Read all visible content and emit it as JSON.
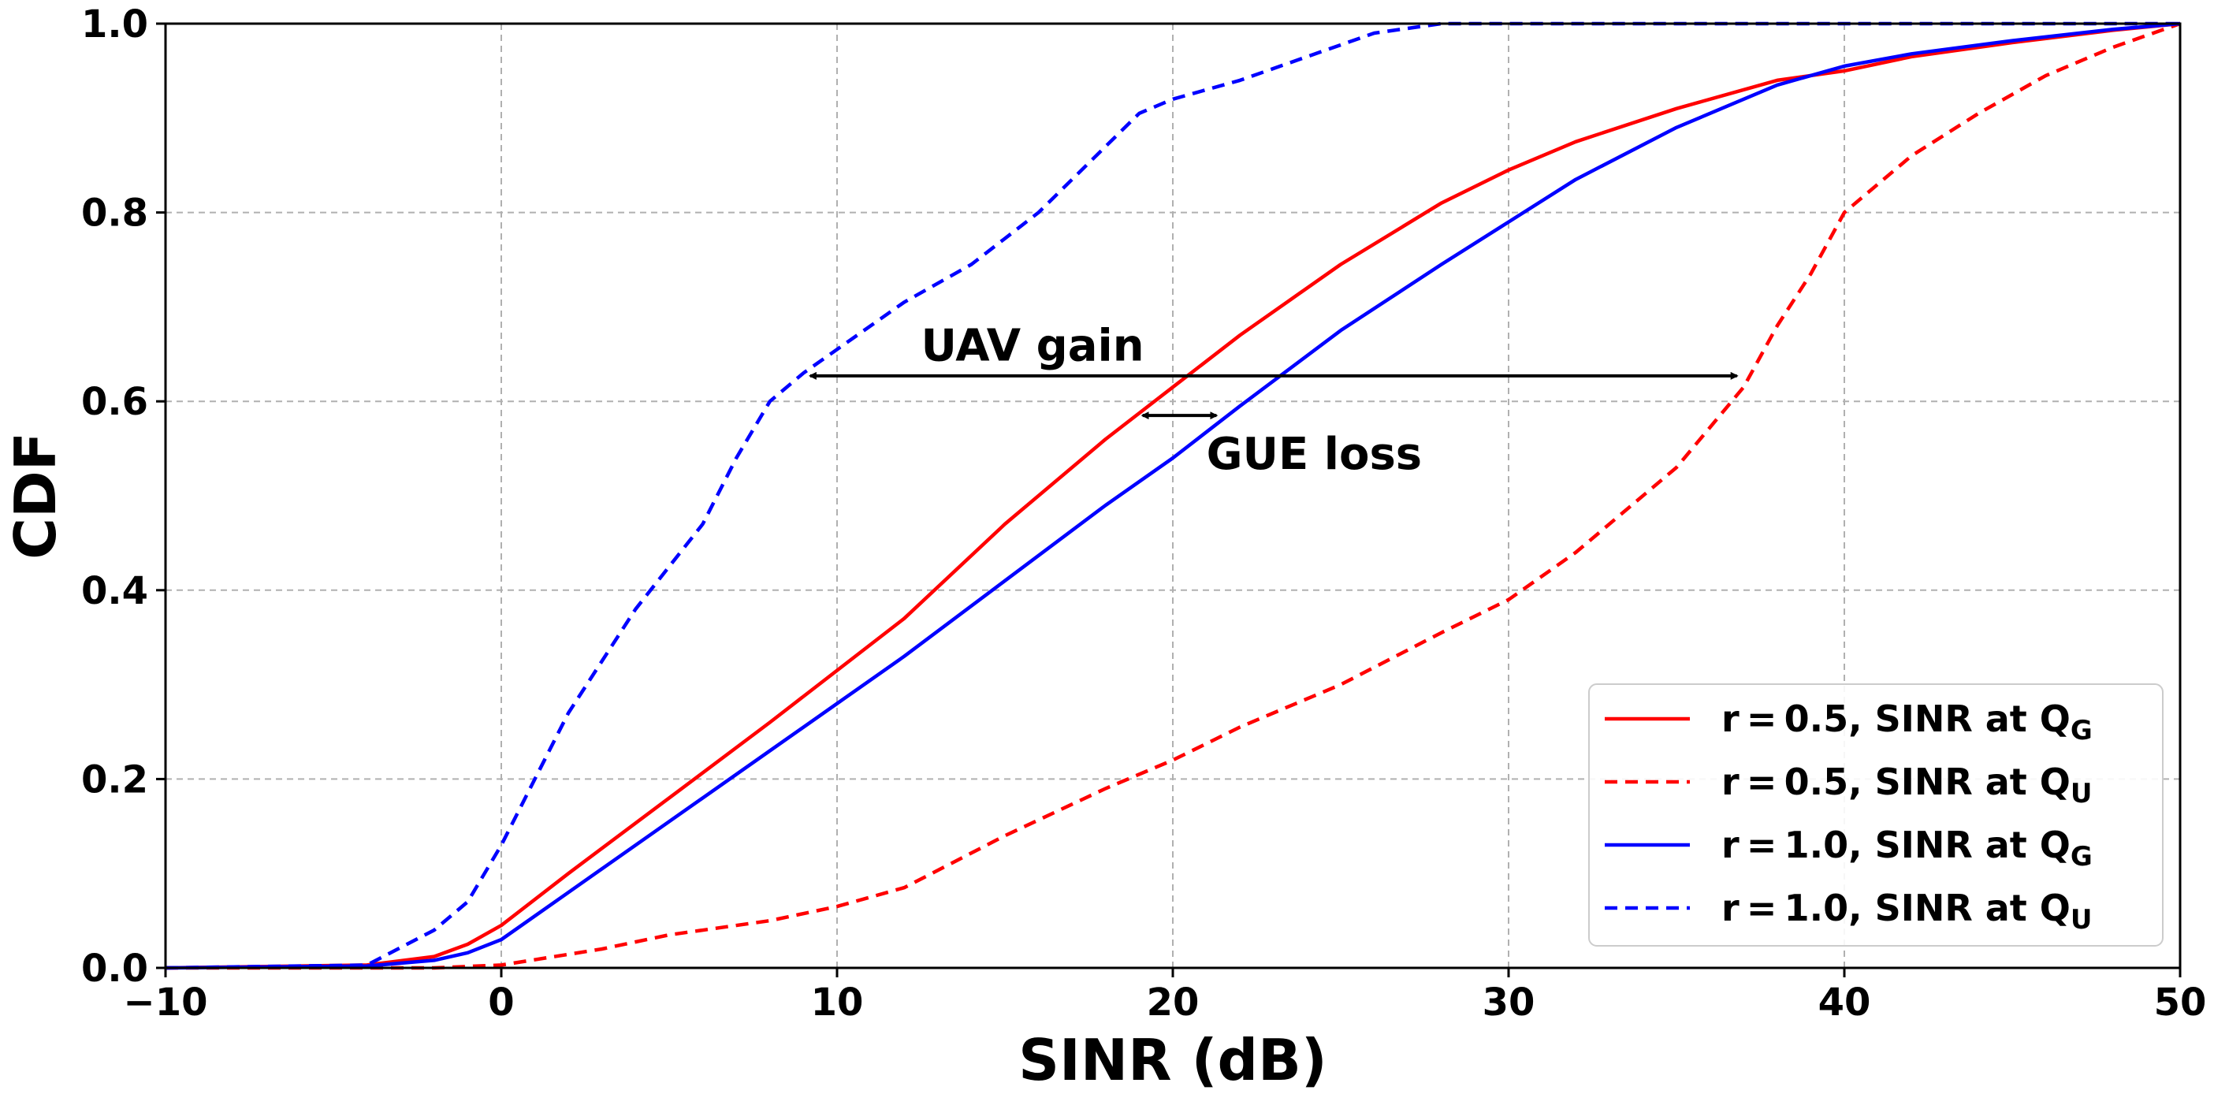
{
  "chart_data": {
    "type": "line",
    "xlabel": "SINR (dB)",
    "ylabel": "CDF",
    "xlim": [
      -10,
      50
    ],
    "ylim": [
      0.0,
      1.0
    ],
    "xticks": [
      -10,
      0,
      10,
      20,
      30,
      40,
      50
    ],
    "xtick_labels": [
      "−10",
      "0",
      "10",
      "20",
      "30",
      "40",
      "50"
    ],
    "yticks": [
      0.0,
      0.2,
      0.4,
      0.6,
      0.8,
      1.0
    ],
    "ytick_labels": [
      "0.0",
      "0.2",
      "0.4",
      "0.6",
      "0.8",
      "1.0"
    ],
    "grid": true,
    "legend_position": "bottom-right",
    "series": [
      {
        "name": "r = 0.5, SINR at Q_G",
        "legend_label": {
          "prefix": "r = 0.5, SINR at Q",
          "sub": "G"
        },
        "color": "#ff0000",
        "style": "solid",
        "x": [
          -10,
          -4,
          -2,
          -1,
          0,
          2,
          5,
          8,
          10,
          12,
          15,
          18,
          20,
          22,
          25,
          28,
          30,
          32,
          35,
          38,
          40,
          42,
          45,
          48,
          50
        ],
        "y": [
          0.0,
          0.003,
          0.012,
          0.025,
          0.045,
          0.1,
          0.18,
          0.26,
          0.315,
          0.37,
          0.47,
          0.56,
          0.615,
          0.67,
          0.745,
          0.81,
          0.845,
          0.875,
          0.91,
          0.94,
          0.95,
          0.965,
          0.98,
          0.993,
          1.0
        ]
      },
      {
        "name": "r = 0.5, SINR at Q_U",
        "legend_label": {
          "prefix": "r = 0.5, SINR at Q",
          "sub": "U"
        },
        "color": "#ff0000",
        "style": "dashed",
        "x": [
          -10,
          -2,
          0,
          3,
          5,
          8,
          10,
          12,
          15,
          18,
          20,
          22,
          25,
          28,
          30,
          32,
          35,
          37,
          38,
          39,
          40,
          42,
          44,
          46,
          48,
          50
        ],
        "y": [
          0.0,
          0.0,
          0.003,
          0.02,
          0.035,
          0.05,
          0.065,
          0.085,
          0.14,
          0.19,
          0.22,
          0.255,
          0.3,
          0.355,
          0.39,
          0.44,
          0.53,
          0.615,
          0.68,
          0.735,
          0.8,
          0.86,
          0.905,
          0.945,
          0.975,
          1.0
        ]
      },
      {
        "name": "r = 1.0, SINR at Q_G",
        "legend_label": {
          "prefix": "r = 1.0, SINR at Q",
          "sub": "G"
        },
        "color": "#0000ff",
        "style": "solid",
        "x": [
          -10,
          -4,
          -2,
          -1,
          0,
          2,
          5,
          8,
          10,
          12,
          15,
          18,
          20,
          22,
          25,
          28,
          30,
          32,
          35,
          38,
          40,
          42,
          45,
          48,
          50
        ],
        "y": [
          0.0,
          0.002,
          0.008,
          0.016,
          0.03,
          0.08,
          0.155,
          0.23,
          0.28,
          0.33,
          0.41,
          0.49,
          0.54,
          0.595,
          0.675,
          0.745,
          0.79,
          0.835,
          0.89,
          0.935,
          0.955,
          0.968,
          0.982,
          0.994,
          1.0
        ]
      },
      {
        "name": "r = 1.0, SINR at Q_U",
        "legend_label": {
          "prefix": "r = 1.0, SINR at Q",
          "sub": "U"
        },
        "color": "#0000ff",
        "style": "dashed",
        "x": [
          -10,
          -4,
          -2,
          -1,
          0,
          1,
          2,
          4,
          6,
          7,
          8,
          9,
          10,
          12,
          14,
          16,
          18,
          19,
          20,
          22,
          24,
          26,
          28,
          50
        ],
        "y": [
          0.0,
          0.003,
          0.04,
          0.07,
          0.13,
          0.2,
          0.27,
          0.38,
          0.47,
          0.54,
          0.6,
          0.63,
          0.655,
          0.705,
          0.745,
          0.8,
          0.87,
          0.905,
          0.92,
          0.94,
          0.965,
          0.99,
          1.0,
          1.0
        ]
      }
    ],
    "annotations": [
      {
        "text": "UAV gain",
        "x_text": 12.5,
        "y_text": 0.66,
        "arrow_from": [
          9.2,
          0.627
        ],
        "arrow_to": [
          36.8,
          0.627
        ]
      },
      {
        "text": "GUE loss",
        "x_text": 21.0,
        "y_text": 0.545,
        "arrow_from": [
          19.1,
          0.585
        ],
        "arrow_to": [
          21.3,
          0.585
        ]
      }
    ]
  }
}
